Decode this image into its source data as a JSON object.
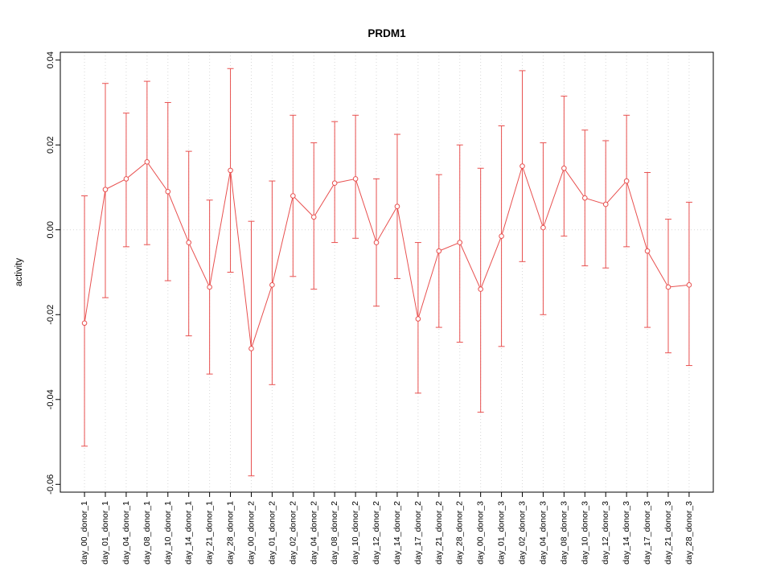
{
  "chart_data": {
    "type": "line",
    "title": "PRDM1",
    "xlabel": "",
    "ylabel": "activity",
    "ylim": [
      -0.06,
      0.04
    ],
    "yticks": [
      -0.06,
      -0.04,
      -0.02,
      0.0,
      0.02,
      0.04
    ],
    "grid": "vertical-dotted",
    "legend": "none",
    "marker": "open-circle",
    "error_bars": true,
    "colors": {
      "series": "#e8504f",
      "grid": "#d8d8d8",
      "zero_line": "#d8d8d8",
      "axis": "#000000",
      "text": "#000000",
      "background": "#ffffff"
    },
    "categories": [
      "day_00_donor_1",
      "day_01_donor_1",
      "day_04_donor_1",
      "day_08_donor_1",
      "day_10_donor_1",
      "day_14_donor_1",
      "day_21_donor_1",
      "day_28_donor_1",
      "day_00_donor_2",
      "day_01_donor_2",
      "day_02_donor_2",
      "day_04_donor_2",
      "day_08_donor_2",
      "day_10_donor_2",
      "day_12_donor_2",
      "day_14_donor_2",
      "day_17_donor_2",
      "day_21_donor_2",
      "day_28_donor_2",
      "day_00_donor_3",
      "day_01_donor_3",
      "day_02_donor_3",
      "day_04_donor_3",
      "day_08_donor_3",
      "day_10_donor_3",
      "day_12_donor_3",
      "day_14_donor_3",
      "day_17_donor_3",
      "day_21_donor_3",
      "day_28_donor_3"
    ],
    "values": [
      -0.022,
      0.0095,
      0.012,
      0.016,
      0.009,
      -0.003,
      -0.0135,
      0.014,
      -0.028,
      -0.013,
      0.008,
      0.003,
      0.011,
      0.012,
      -0.003,
      0.0055,
      -0.021,
      -0.005,
      -0.003,
      -0.014,
      -0.0015,
      0.015,
      0.0005,
      0.0145,
      0.0075,
      0.006,
      0.0115,
      -0.005,
      -0.0135,
      -0.013
    ],
    "upper": [
      0.008,
      0.0345,
      0.0275,
      0.035,
      0.03,
      0.0185,
      0.007,
      0.038,
      0.002,
      0.0115,
      0.027,
      0.0205,
      0.0255,
      0.027,
      0.012,
      0.0225,
      -0.003,
      0.013,
      0.02,
      0.0145,
      0.0245,
      0.0375,
      0.0205,
      0.0315,
      0.0235,
      0.021,
      0.027,
      0.0135,
      0.0025,
      0.0065
    ],
    "lower": [
      -0.051,
      -0.016,
      -0.004,
      -0.0035,
      -0.012,
      -0.025,
      -0.034,
      -0.01,
      -0.058,
      -0.0365,
      -0.011,
      -0.014,
      -0.003,
      -0.002,
      -0.018,
      -0.0115,
      -0.0385,
      -0.023,
      -0.0265,
      -0.043,
      -0.0275,
      -0.0075,
      -0.02,
      -0.0015,
      -0.0085,
      -0.009,
      -0.004,
      -0.023,
      -0.029,
      -0.032
    ]
  }
}
